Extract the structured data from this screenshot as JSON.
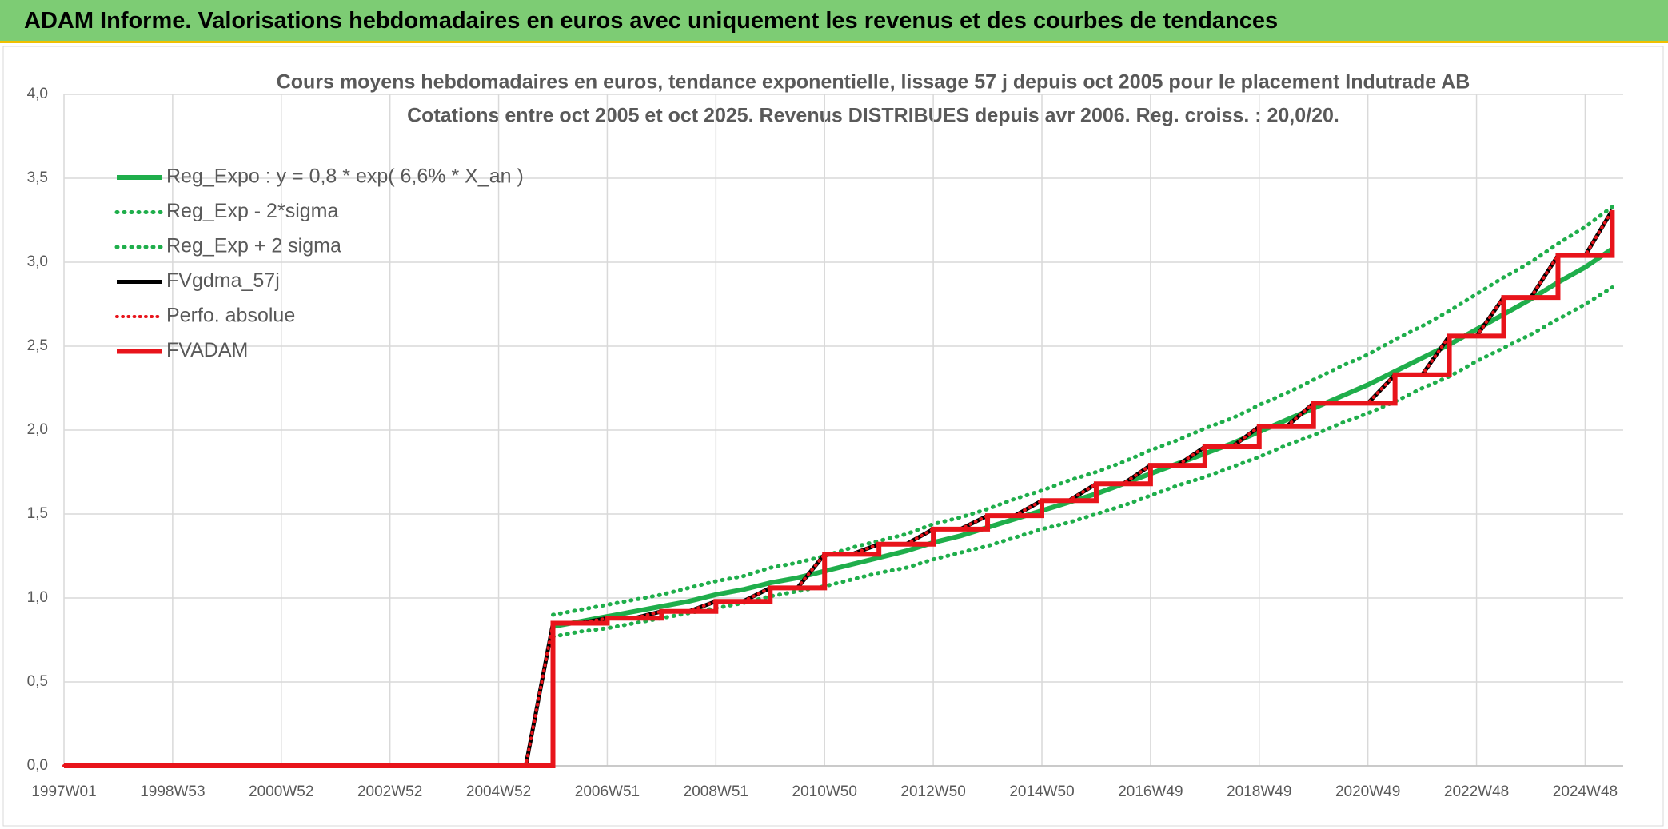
{
  "header": {
    "title": "ADAM Informe. Valorisations hebdomadaires en euros avec uniquement les revenus et des courbes de tendances"
  },
  "chart_data": {
    "type": "line",
    "title": "Cours moyens hebdomadaires en euros, tendance exponentielle, lissage 57 j depuis oct 2005 pour le placement Indutrade AB",
    "subtitle": "Cotations entre oct 2005 et oct 2025. Revenus DISTRIBUES depuis avr 2006. Reg. croiss. : 20,0/20.",
    "categories": [
      "1997W01",
      null,
      null,
      null,
      "1998W53",
      null,
      null,
      null,
      "2000W52",
      null,
      null,
      null,
      "2002W52",
      null,
      null,
      null,
      "2004W52",
      null,
      null,
      null,
      "2006W51",
      null,
      null,
      null,
      "2008W51",
      null,
      null,
      null,
      "2010W50",
      null,
      null,
      null,
      "2012W50",
      null,
      null,
      null,
      "2014W50",
      null,
      null,
      null,
      "2016W49",
      null,
      null,
      null,
      "2018W49",
      null,
      null,
      null,
      "2020W49",
      null,
      null,
      null,
      "2022W48",
      null,
      null,
      null,
      "2024W48",
      null
    ],
    "ylim": [
      0,
      4
    ],
    "yticks": [
      {
        "value": 0,
        "label": "0,0"
      },
      {
        "value": 0.5,
        "label": "0,5"
      },
      {
        "value": 1,
        "label": "1,0"
      },
      {
        "value": 1.5,
        "label": "1,5"
      },
      {
        "value": 2,
        "label": "2,0"
      },
      {
        "value": 2.5,
        "label": "2,5"
      },
      {
        "value": 3,
        "label": "3,0"
      },
      {
        "value": 3.5,
        "label": "3,5"
      },
      {
        "value": 4,
        "label": "4,0"
      }
    ],
    "grid": true,
    "series": [
      {
        "name": "Reg_Expo : y = 0,8 * exp( 6,6% *  X_an )",
        "color": "#1fae4b",
        "style": "solid",
        "width": 6,
        "values": [
          null,
          null,
          null,
          null,
          null,
          null,
          null,
          null,
          null,
          null,
          null,
          null,
          null,
          null,
          null,
          null,
          null,
          null,
          0.83,
          0.86,
          0.89,
          0.92,
          0.95,
          0.98,
          1.02,
          1.05,
          1.09,
          1.12,
          1.16,
          1.2,
          1.24,
          1.28,
          1.33,
          1.37,
          1.42,
          1.47,
          1.52,
          1.57,
          1.62,
          1.68,
          1.74,
          1.8,
          1.86,
          1.92,
          1.99,
          2.06,
          2.13,
          2.2,
          2.27,
          2.35,
          2.43,
          2.51,
          2.6,
          2.69,
          2.78,
          2.88,
          2.97,
          3.08
        ]
      },
      {
        "name": "Reg_Exp - 2*sigma",
        "color": "#1fae4b",
        "style": "dotted",
        "width": 5,
        "values": [
          null,
          null,
          null,
          null,
          null,
          null,
          null,
          null,
          null,
          null,
          null,
          null,
          null,
          null,
          null,
          null,
          null,
          null,
          0.77,
          0.8,
          0.82,
          0.85,
          0.88,
          0.91,
          0.94,
          0.97,
          1.01,
          1.04,
          1.07,
          1.11,
          1.15,
          1.18,
          1.23,
          1.27,
          1.31,
          1.36,
          1.41,
          1.45,
          1.5,
          1.55,
          1.61,
          1.67,
          1.72,
          1.78,
          1.84,
          1.91,
          1.97,
          2.04,
          2.1,
          2.17,
          2.25,
          2.32,
          2.41,
          2.49,
          2.57,
          2.66,
          2.75,
          2.85
        ]
      },
      {
        "name": "Reg_Exp + 2 sigma",
        "color": "#1fae4b",
        "style": "dotted",
        "width": 5,
        "values": [
          null,
          null,
          null,
          null,
          null,
          null,
          null,
          null,
          null,
          null,
          null,
          null,
          null,
          null,
          null,
          null,
          null,
          null,
          0.9,
          0.93,
          0.96,
          0.99,
          1.02,
          1.06,
          1.1,
          1.13,
          1.18,
          1.21,
          1.25,
          1.3,
          1.34,
          1.38,
          1.44,
          1.48,
          1.53,
          1.59,
          1.64,
          1.7,
          1.75,
          1.81,
          1.88,
          1.94,
          2.01,
          2.07,
          2.15,
          2.22,
          2.3,
          2.38,
          2.45,
          2.54,
          2.62,
          2.71,
          2.81,
          2.91,
          3.0,
          3.11,
          3.21,
          3.33
        ]
      },
      {
        "name": "FVgdma_57j",
        "color": "#000000",
        "style": "solid",
        "width": 5,
        "values": [
          0,
          0,
          0,
          0,
          0,
          0,
          0,
          0,
          0,
          0,
          0,
          0,
          0,
          0,
          0,
          0,
          0,
          0,
          0.85,
          0.85,
          0.88,
          0.88,
          0.92,
          0.92,
          0.98,
          0.98,
          1.06,
          1.06,
          1.26,
          1.26,
          1.32,
          1.32,
          1.41,
          1.41,
          1.49,
          1.49,
          1.58,
          1.58,
          1.68,
          1.68,
          1.79,
          1.79,
          1.9,
          1.9,
          2.02,
          2.02,
          2.16,
          2.16,
          2.16,
          2.33,
          2.33,
          2.56,
          2.56,
          2.79,
          2.79,
          3.04,
          3.04,
          3.31
        ]
      },
      {
        "name": "Perfo. absolue",
        "color": "#e8141b",
        "style": "dotted",
        "width": 4,
        "values": [
          0,
          0,
          0,
          0,
          0,
          0,
          0,
          0,
          0,
          0,
          0,
          0,
          0,
          0,
          0,
          0,
          0,
          0,
          0.85,
          0.85,
          0.88,
          0.88,
          0.92,
          0.92,
          0.98,
          0.98,
          1.06,
          1.06,
          1.26,
          1.26,
          1.32,
          1.32,
          1.41,
          1.41,
          1.49,
          1.49,
          1.58,
          1.58,
          1.68,
          1.68,
          1.79,
          1.79,
          1.9,
          1.9,
          2.02,
          2.02,
          2.16,
          2.16,
          2.16,
          2.33,
          2.33,
          2.56,
          2.56,
          2.79,
          2.79,
          3.04,
          3.04,
          3.31
        ]
      },
      {
        "name": "FVADAM",
        "color": "#e8141b",
        "style": "solid",
        "width": 6,
        "step": true,
        "values": [
          0,
          0,
          0,
          0,
          0,
          0,
          0,
          0,
          0,
          0,
          0,
          0,
          0,
          0,
          0,
          0,
          0,
          0,
          0.85,
          0.85,
          0.88,
          0.88,
          0.92,
          0.92,
          0.98,
          0.98,
          1.06,
          1.06,
          1.26,
          1.26,
          1.32,
          1.32,
          1.41,
          1.41,
          1.49,
          1.49,
          1.58,
          1.58,
          1.68,
          1.68,
          1.79,
          1.79,
          1.9,
          1.9,
          2.02,
          2.02,
          2.16,
          2.16,
          2.16,
          2.33,
          2.33,
          2.56,
          2.56,
          2.79,
          2.79,
          3.04,
          3.04,
          3.31
        ]
      }
    ]
  }
}
